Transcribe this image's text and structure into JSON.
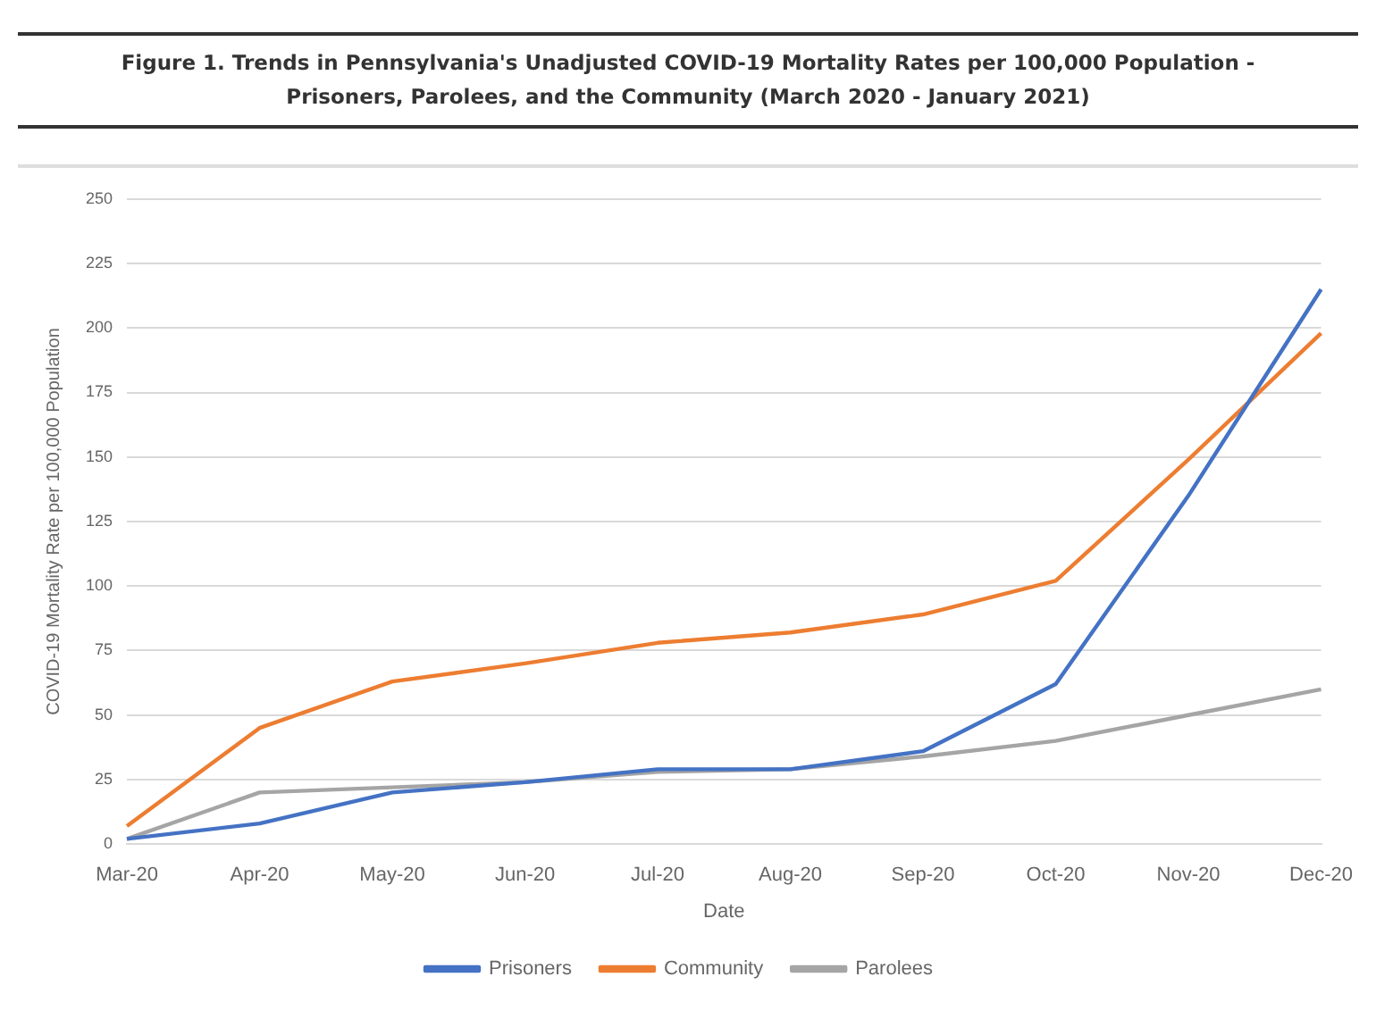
{
  "chart_data": {
    "type": "line",
    "title": [
      "Figure 1. Trends in Pennsylvania's Unadjusted COVID-19 Mortality Rates per 100,000 Population -",
      "Prisoners, Parolees, and the Community (March 2020 - January 2021)"
    ],
    "xlabel": "Date",
    "ylabel": "COVID-19 Mortality Rate per 100,000 Population",
    "categories": [
      "Mar-20",
      "Apr-20",
      "May-20",
      "Jun-20",
      "Jul-20",
      "Aug-20",
      "Sep-20",
      "Oct-20",
      "Nov-20",
      "Dec-20"
    ],
    "series": [
      {
        "name": "Prisoners",
        "color": "#4472c4",
        "values": [
          2,
          8,
          20,
          24,
          29,
          29,
          36,
          62,
          135,
          215
        ]
      },
      {
        "name": "Community",
        "color": "#ed7d31",
        "values": [
          7,
          45,
          63,
          70,
          78,
          82,
          89,
          102,
          149,
          198
        ]
      },
      {
        "name": "Parolees",
        "color": "#a5a5a5",
        "values": [
          2,
          20,
          22,
          24,
          28,
          29,
          34,
          40,
          50,
          60
        ]
      }
    ],
    "ylim": [
      0,
      250
    ],
    "yticks": [
      0,
      25,
      50,
      75,
      100,
      125,
      150,
      175,
      200,
      225,
      250
    ],
    "grid": "y",
    "legend": "bottom",
    "marker": "none",
    "line_style": "solid"
  }
}
